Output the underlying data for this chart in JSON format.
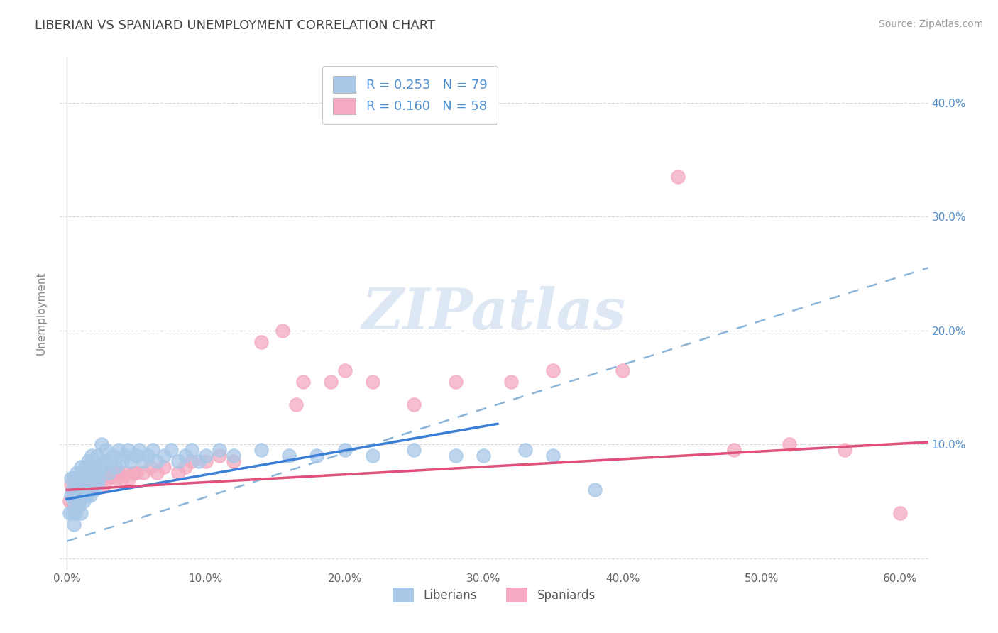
{
  "title": "LIBERIAN VS SPANIARD UNEMPLOYMENT CORRELATION CHART",
  "source": "Source: ZipAtlas.com",
  "ylabel": "Unemployment",
  "xlim": [
    -0.005,
    0.62
  ],
  "ylim": [
    -0.01,
    0.44
  ],
  "xticks": [
    0.0,
    0.1,
    0.2,
    0.3,
    0.4,
    0.5,
    0.6
  ],
  "xtick_labels": [
    "0.0%",
    "10.0%",
    "20.0%",
    "30.0%",
    "40.0%",
    "50.0%",
    "60.0%"
  ],
  "yticks": [
    0.0,
    0.1,
    0.2,
    0.3,
    0.4
  ],
  "ytick_labels_left": [
    "",
    "",
    "",
    "",
    ""
  ],
  "ytick_labels_right": [
    "",
    "10.0%",
    "20.0%",
    "30.0%",
    "40.0%"
  ],
  "liberian_color": "#a8c8e8",
  "spaniard_color": "#f4aac0",
  "liberian_line_color": "#3a7fd5",
  "spaniard_line_color": "#e0507a",
  "dashed_line_color": "#8ab4d8",
  "R_liberian": 0.253,
  "N_liberian": 79,
  "R_spaniard": 0.16,
  "N_spaniard": 58,
  "watermark": "ZIPatlas",
  "background_color": "#ffffff",
  "grid_color": "#d8d8d8",
  "title_color": "#444444",
  "right_axis_color": "#5090d0",
  "legend_text_color": "#5090d0",
  "liberian_line_x_end": 0.31,
  "spaniard_line_x_end": 0.62,
  "dashed_line_x_end": 0.62,
  "lib_trend_start_y": 0.052,
  "lib_trend_end_y": 0.118,
  "spa_trend_start_y": 0.06,
  "spa_trend_end_y": 0.102,
  "dash_trend_start_y": 0.015,
  "dash_trend_end_y": 0.255,
  "liberian_x": [
    0.002,
    0.003,
    0.003,
    0.004,
    0.004,
    0.005,
    0.005,
    0.005,
    0.006,
    0.006,
    0.007,
    0.007,
    0.008,
    0.008,
    0.009,
    0.009,
    0.01,
    0.01,
    0.01,
    0.011,
    0.011,
    0.012,
    0.012,
    0.013,
    0.013,
    0.014,
    0.015,
    0.015,
    0.016,
    0.016,
    0.017,
    0.018,
    0.018,
    0.019,
    0.02,
    0.02,
    0.021,
    0.022,
    0.022,
    0.023,
    0.025,
    0.025,
    0.027,
    0.028,
    0.03,
    0.031,
    0.033,
    0.035,
    0.037,
    0.04,
    0.042,
    0.044,
    0.046,
    0.05,
    0.052,
    0.055,
    0.058,
    0.062,
    0.065,
    0.07,
    0.075,
    0.08,
    0.085,
    0.09,
    0.095,
    0.1,
    0.11,
    0.12,
    0.14,
    0.16,
    0.18,
    0.2,
    0.22,
    0.25,
    0.28,
    0.3,
    0.33,
    0.35,
    0.38
  ],
  "liberian_y": [
    0.04,
    0.055,
    0.07,
    0.04,
    0.06,
    0.03,
    0.05,
    0.07,
    0.04,
    0.06,
    0.055,
    0.075,
    0.045,
    0.065,
    0.05,
    0.07,
    0.04,
    0.06,
    0.08,
    0.055,
    0.075,
    0.05,
    0.065,
    0.06,
    0.08,
    0.055,
    0.065,
    0.085,
    0.06,
    0.08,
    0.055,
    0.07,
    0.09,
    0.065,
    0.06,
    0.08,
    0.075,
    0.065,
    0.09,
    0.07,
    0.08,
    0.1,
    0.085,
    0.095,
    0.075,
    0.085,
    0.09,
    0.08,
    0.095,
    0.085,
    0.09,
    0.095,
    0.085,
    0.09,
    0.095,
    0.085,
    0.09,
    0.095,
    0.085,
    0.09,
    0.095,
    0.085,
    0.09,
    0.095,
    0.085,
    0.09,
    0.095,
    0.09,
    0.095,
    0.09,
    0.09,
    0.095,
    0.09,
    0.095,
    0.09,
    0.09,
    0.095,
    0.09,
    0.06
  ],
  "spaniard_x": [
    0.002,
    0.003,
    0.004,
    0.005,
    0.005,
    0.006,
    0.007,
    0.008,
    0.009,
    0.01,
    0.011,
    0.012,
    0.013,
    0.015,
    0.016,
    0.017,
    0.018,
    0.02,
    0.021,
    0.022,
    0.025,
    0.027,
    0.03,
    0.032,
    0.035,
    0.037,
    0.04,
    0.042,
    0.045,
    0.048,
    0.05,
    0.055,
    0.06,
    0.065,
    0.07,
    0.08,
    0.085,
    0.09,
    0.1,
    0.11,
    0.12,
    0.14,
    0.155,
    0.165,
    0.17,
    0.19,
    0.2,
    0.22,
    0.25,
    0.28,
    0.32,
    0.35,
    0.4,
    0.44,
    0.48,
    0.52,
    0.56,
    0.6
  ],
  "spaniard_y": [
    0.05,
    0.065,
    0.05,
    0.06,
    0.07,
    0.055,
    0.065,
    0.06,
    0.07,
    0.065,
    0.07,
    0.065,
    0.07,
    0.065,
    0.07,
    0.065,
    0.07,
    0.065,
    0.07,
    0.065,
    0.07,
    0.065,
    0.07,
    0.075,
    0.07,
    0.075,
    0.07,
    0.075,
    0.07,
    0.075,
    0.075,
    0.075,
    0.08,
    0.075,
    0.08,
    0.075,
    0.08,
    0.085,
    0.085,
    0.09,
    0.085,
    0.19,
    0.2,
    0.135,
    0.155,
    0.155,
    0.165,
    0.155,
    0.135,
    0.155,
    0.155,
    0.165,
    0.165,
    0.335,
    0.095,
    0.1,
    0.095,
    0.04
  ]
}
